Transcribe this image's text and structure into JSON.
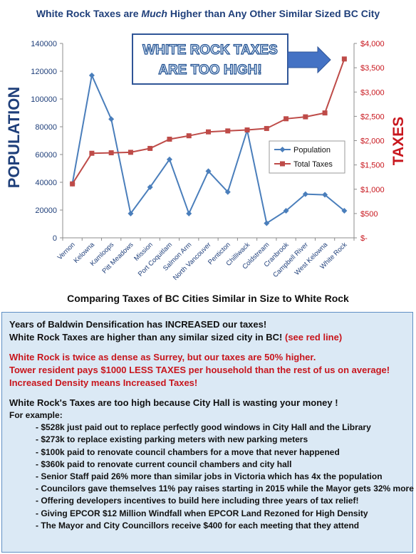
{
  "chart_data": {
    "type": "line",
    "title": {
      "pre": "White Rock Taxes are ",
      "emph": "Much",
      "post": " Higher than Any Other Similar Sized BC City"
    },
    "xlabel": "Comparing Taxes of BC Cities Similar in Size to White Rock",
    "ylabel_left": "POPULATION",
    "ylabel_right": "TAXES",
    "categories": [
      "Vernon",
      "Kelowna",
      "Kamloops",
      "Pitt Meadows",
      "Mission",
      "Port Coquitlam",
      "Salmon Arm",
      "North Vancouver",
      "Penticton",
      "Chilliwack",
      "Coldstream",
      "Cranbrook",
      "Campbell River",
      "West Kelowna",
      "White Rock"
    ],
    "ylim_left": [
      0,
      140000
    ],
    "yticks_left": [
      "0",
      "20000",
      "40000",
      "60000",
      "80000",
      "100000",
      "120000",
      "140000"
    ],
    "ylim_right": [
      0,
      4000
    ],
    "yticks_right": [
      "$-",
      "$500",
      "$1,000",
      "$1,500",
      "$2,000",
      "$2,500",
      "$3,000",
      "$3,500",
      "$4,000"
    ],
    "series": [
      {
        "name": "Population",
        "axis": "left",
        "color": "#4a7ebb",
        "marker": "diamond",
        "values": [
          39000,
          117000,
          85500,
          17500,
          36500,
          56500,
          17500,
          48000,
          33000,
          77500,
          10500,
          19500,
          31500,
          31000,
          19500
        ]
      },
      {
        "name": "Total Taxes",
        "axis": "right",
        "color": "#be4b48",
        "marker": "square",
        "values": [
          1110,
          1740,
          1750,
          1760,
          1840,
          2030,
          2100,
          2180,
          2200,
          2220,
          2250,
          2450,
          2490,
          2570,
          3680
        ]
      }
    ],
    "legend": "right-middle",
    "grid": false,
    "annotation": {
      "line1": "WHITE ROCK TAXES",
      "line2": "ARE TOO HIGH!"
    }
  },
  "info": {
    "p1": "Years of Baldwin Densification has INCREASED  our taxes!",
    "p2a": "White Rock Taxes are higher than any similar sized city in BC! ",
    "p2b": "(see red line)",
    "r1": "White Rock is twice as dense as Surrey, but our taxes are 50% higher.",
    "r2": "Tower resident pays $1000 LESS TAXES per household than the rest of us on average!",
    "r3": "Increased Density means Increased Taxes!",
    "h": "White Rock's Taxes are too high because City Hall is wasting your money !",
    "fe": "For example:",
    "items": [
      "- $528k just paid out to replace perfectly good windows in City Hall and the Library",
      "- $273k to replace existing parking meters with new parking meters",
      "- $100k paid to renovate council chambers for a move that never happened",
      "- $360k paid to renovate current council chambers and city hall",
      "- Senior Staff paid 26% more than similar jobs in Victoria which has 4x the population",
      "- Councilors gave themselves 11% pay raises starting in 2015 while the Mayor gets 32% more",
      "- Offering developers incentives to build here including three years of tax relief!",
      "- Giving EPCOR $12 Million Windfall when EPCOR Land Rezoned for High Density",
      "- The Mayor and City Councillors receive $400 for each meeting that they attend"
    ]
  }
}
